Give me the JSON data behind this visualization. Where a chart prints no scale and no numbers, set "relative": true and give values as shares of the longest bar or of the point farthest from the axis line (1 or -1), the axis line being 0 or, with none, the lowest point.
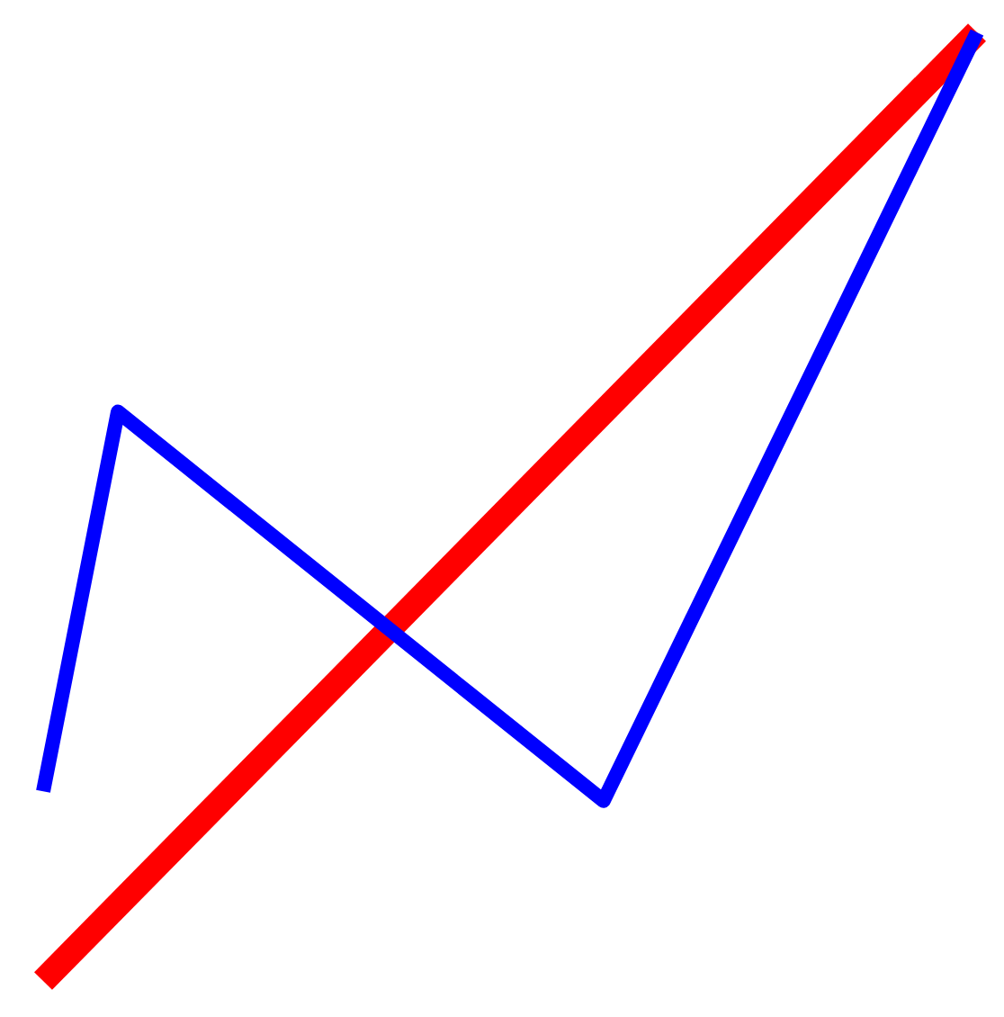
{
  "chart_data": {
    "type": "line",
    "relative": true,
    "tick_labels": false,
    "line_style": "solid",
    "categories": [
      null,
      null,
      null,
      null,
      null,
      null,
      null,
      null,
      null,
      null,
      null,
      null,
      null,
      null,
      null,
      null,
      null,
      null,
      null,
      null,
      null,
      null,
      null,
      null,
      null,
      null
    ],
    "series": [
      {
        "color": "#ff0000",
        "values": [
          0,
          null,
          null,
          null,
          null,
          null,
          null,
          null,
          null,
          null,
          null,
          null,
          null,
          null,
          null,
          null,
          null,
          null,
          null,
          null,
          null,
          null,
          null,
          null,
          null,
          1
        ]
      },
      {
        "color": "#0000ff",
        "values": [
          0.2,
          null,
          0.6,
          null,
          null,
          null,
          null,
          null,
          null,
          null,
          null,
          null,
          null,
          null,
          null,
          0.19,
          null,
          null,
          null,
          null,
          null,
          null,
          null,
          null,
          null,
          1
        ]
      }
    ]
  }
}
